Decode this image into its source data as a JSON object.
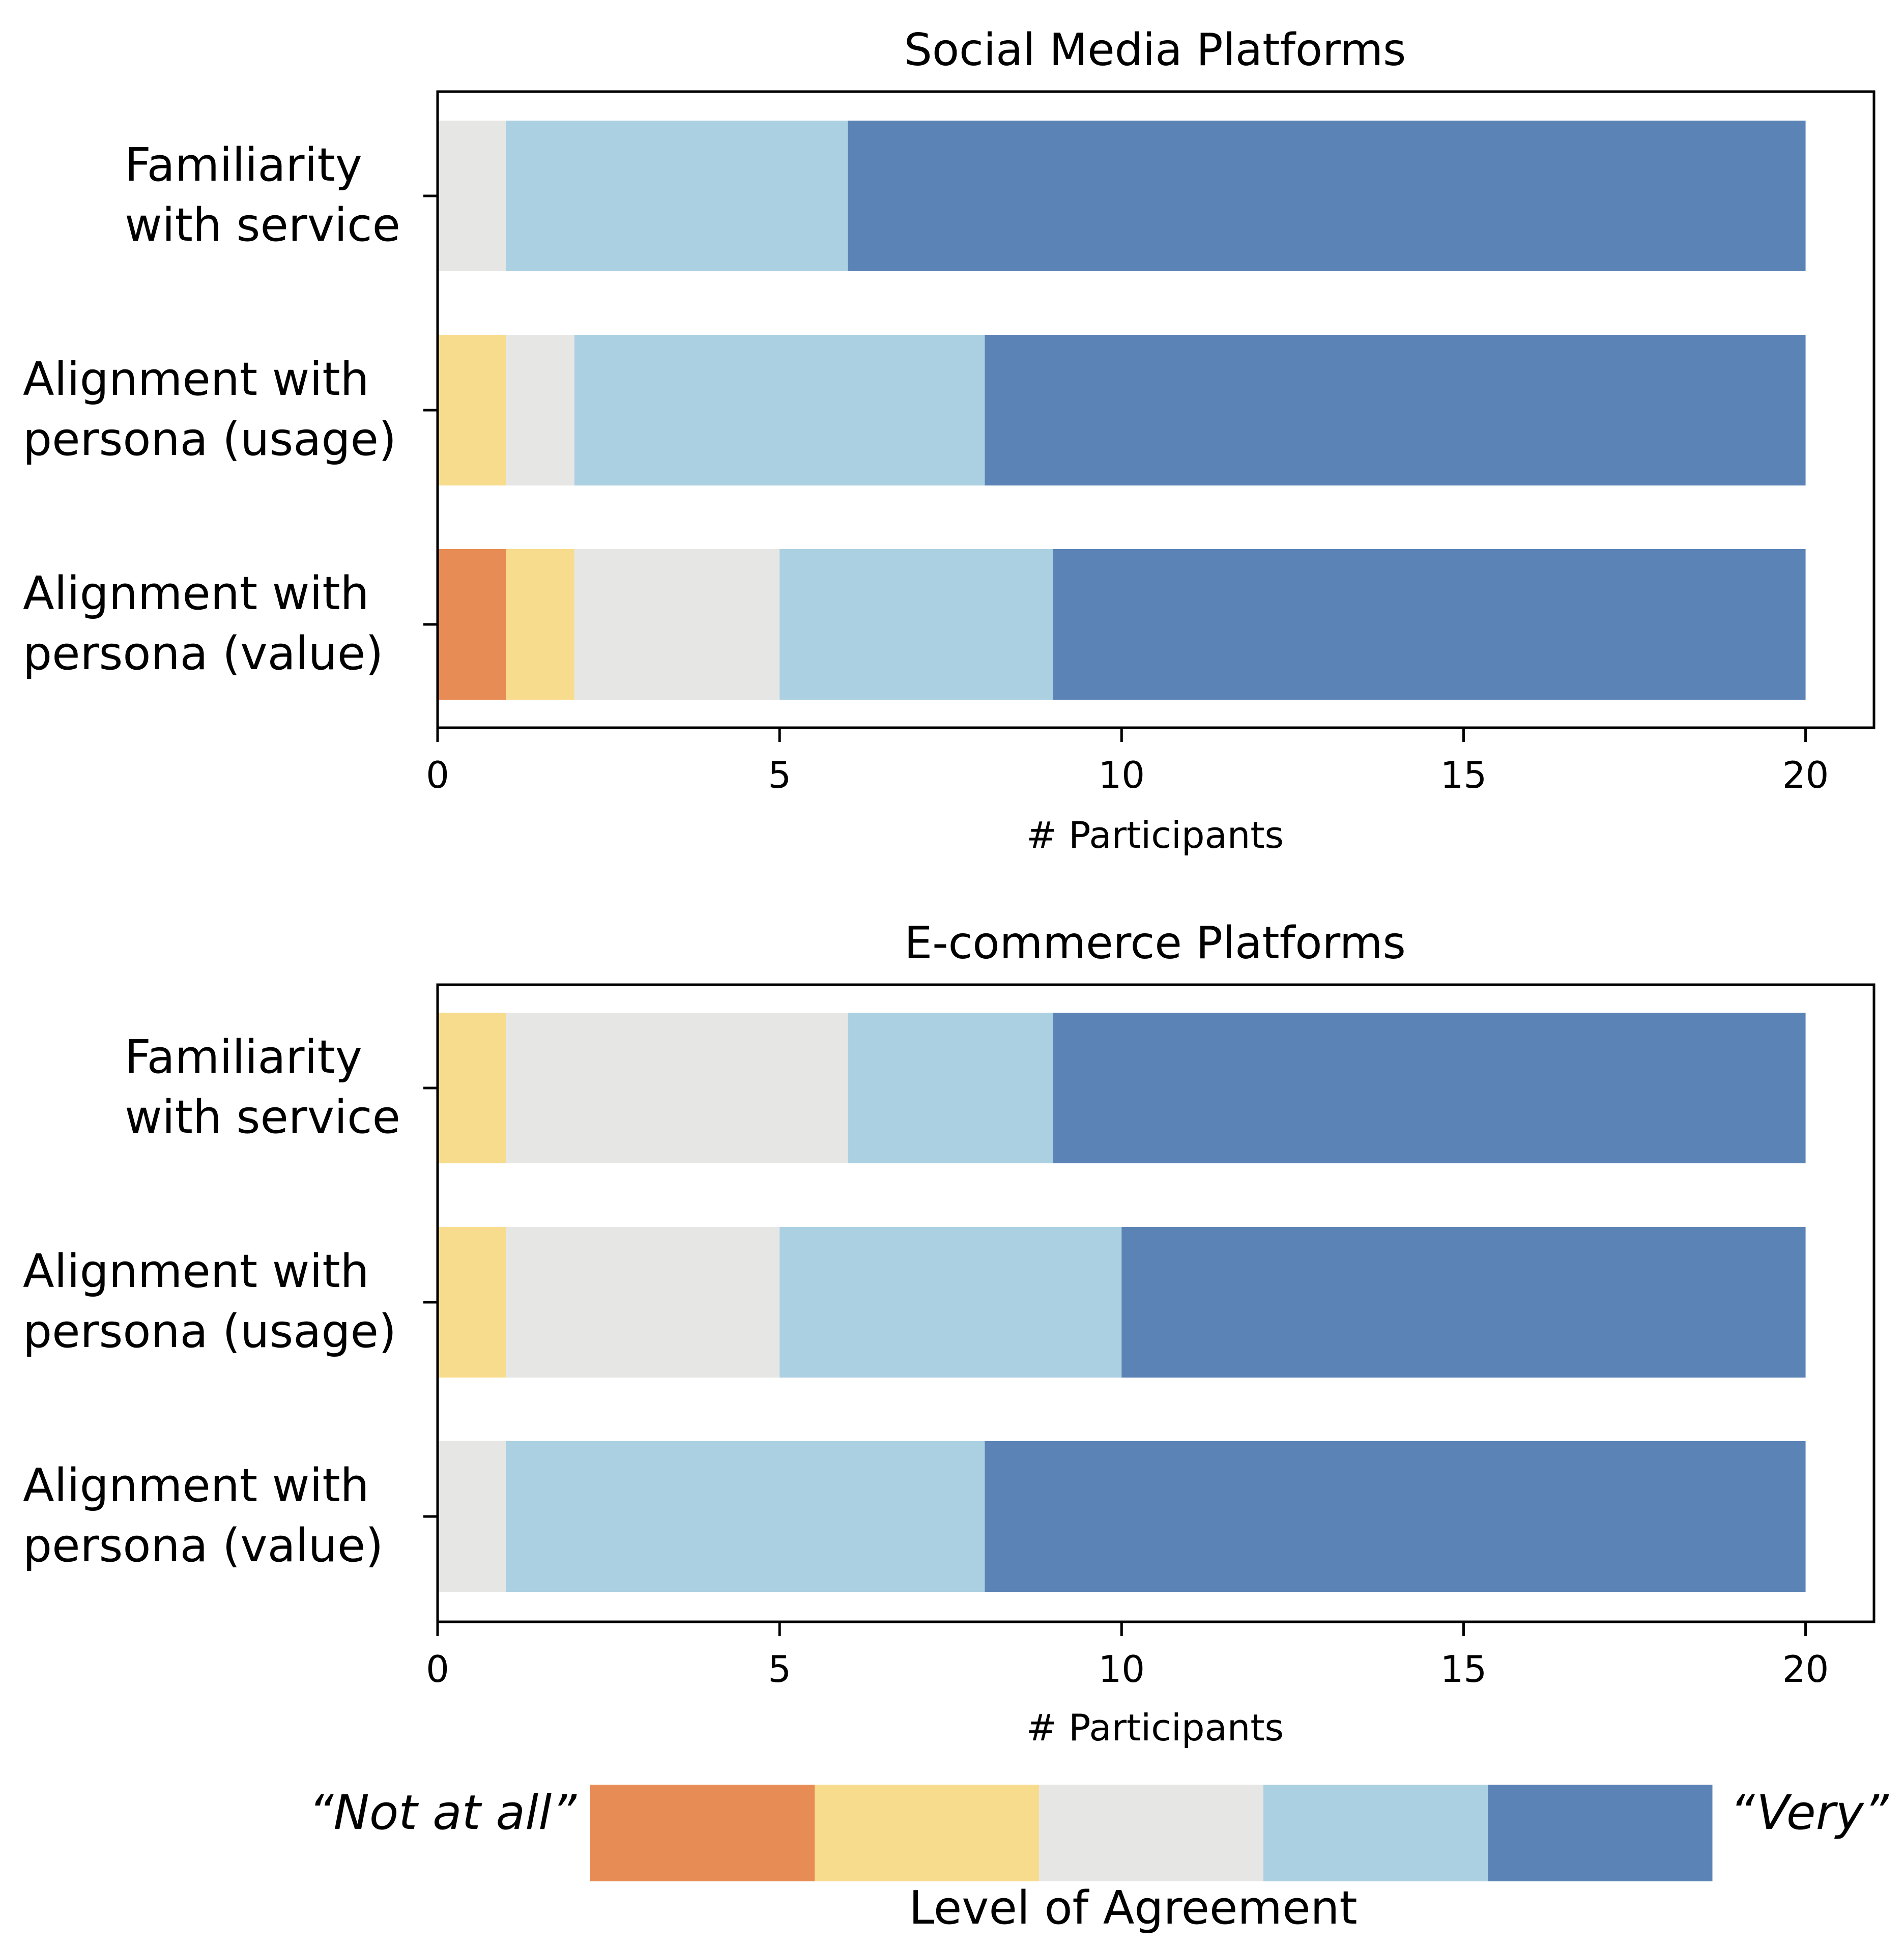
{
  "chart_data": [
    {
      "type": "bar",
      "orientation": "horizontal",
      "stacked": true,
      "title": "Social Media Platforms",
      "xlabel": "# Participants",
      "ylabel": "",
      "xlim": [
        0,
        21
      ],
      "xticks": [
        "0",
        "5",
        "10",
        "15",
        "20"
      ],
      "categories": [
        [
          "Familiarity",
          "with service"
        ],
        [
          "Alignment with",
          "persona (usage)"
        ],
        [
          "Alignment with",
          "persona (value)"
        ]
      ],
      "series": [
        {
          "name": "1",
          "values": [
            0,
            0,
            1
          ]
        },
        {
          "name": "2",
          "values": [
            0,
            1,
            1
          ]
        },
        {
          "name": "3",
          "values": [
            1,
            1,
            3
          ]
        },
        {
          "name": "4",
          "values": [
            5,
            6,
            4
          ]
        },
        {
          "name": "5",
          "values": [
            14,
            12,
            11
          ]
        }
      ]
    },
    {
      "type": "bar",
      "orientation": "horizontal",
      "stacked": true,
      "title": "E-commerce Platforms",
      "xlabel": "# Participants",
      "ylabel": "",
      "xlim": [
        0,
        21
      ],
      "xticks": [
        "0",
        "5",
        "10",
        "15",
        "20"
      ],
      "categories": [
        [
          "Familiarity",
          "with service"
        ],
        [
          "Alignment with",
          "persona (usage)"
        ],
        [
          "Alignment with",
          "persona (value)"
        ]
      ],
      "series": [
        {
          "name": "1",
          "values": [
            0,
            0,
            0
          ]
        },
        {
          "name": "2",
          "values": [
            1,
            1,
            0
          ]
        },
        {
          "name": "3",
          "values": [
            5,
            4,
            1
          ]
        },
        {
          "name": "4",
          "values": [
            3,
            5,
            7
          ]
        },
        {
          "name": "5",
          "values": [
            11,
            10,
            12
          ]
        }
      ]
    }
  ],
  "legend": {
    "title": "Level of Agreement",
    "low_label": "“Not at all”",
    "high_label": "“Very”",
    "levels": [
      "1",
      "2",
      "3",
      "4",
      "5"
    ]
  },
  "colors": [
    "#e88c55",
    "#f8dc8d",
    "#e6e6e4",
    "#abd0e2",
    "#5c83b6"
  ]
}
